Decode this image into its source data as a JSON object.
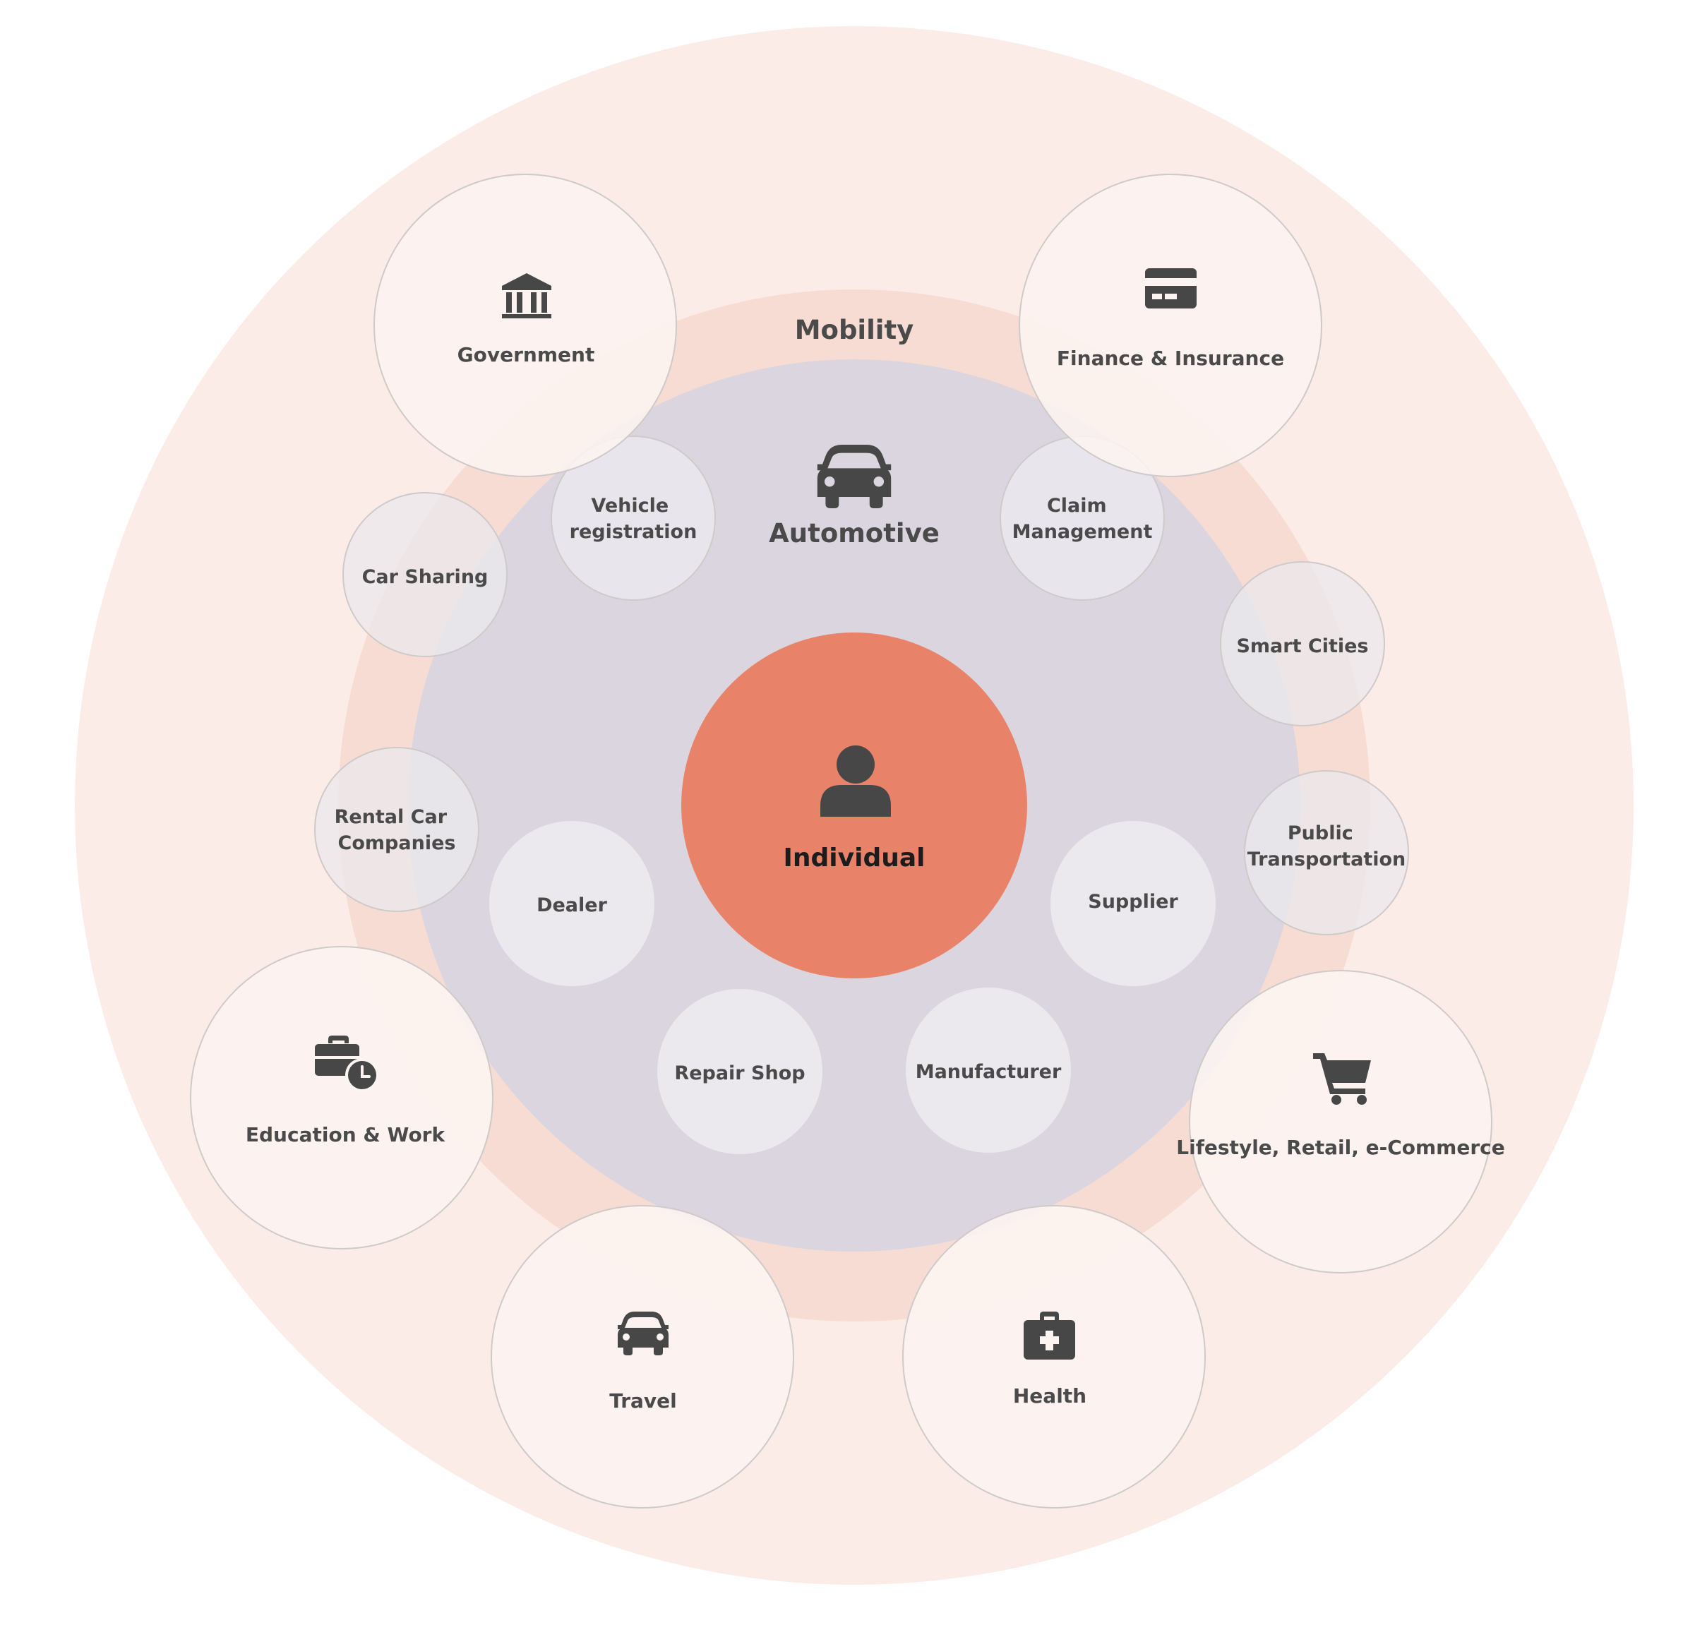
{
  "center": {
    "label": "Individual",
    "icon": "person-icon"
  },
  "automotive": {
    "label": "Automotive",
    "icon": "car-icon"
  },
  "mobility": {
    "label": "Mobility"
  },
  "inner_nodes": {
    "vehicle_registration": {
      "lines": [
        "Vehicle",
        "registration"
      ]
    },
    "claim_management": {
      "lines": [
        "Claim",
        "Management"
      ]
    },
    "dealer": {
      "lines": [
        "Dealer"
      ]
    },
    "supplier": {
      "lines": [
        "Supplier"
      ]
    },
    "repair_shop": {
      "lines": [
        "Repair Shop"
      ]
    },
    "manufacturer": {
      "lines": [
        "Manufacturer"
      ]
    }
  },
  "mobility_nodes": {
    "car_sharing": {
      "lines": [
        "Car Sharing"
      ]
    },
    "rental_car": {
      "lines": [
        "Rental Car",
        "Companies"
      ]
    },
    "smart_cities": {
      "lines": [
        "Smart Cities"
      ]
    },
    "public_transportation": {
      "lines": [
        "Public",
        "Transportation"
      ]
    }
  },
  "outer_nodes": {
    "government": {
      "label": "Government",
      "icon": "bank-icon"
    },
    "finance": {
      "label": "Finance & Insurance",
      "icon": "credit-card-icon"
    },
    "education": {
      "label": "Education & Work",
      "icon": "briefcase-clock-icon"
    },
    "lifestyle": {
      "label": "Lifestyle, Retail, e-Commerce",
      "icon": "shopping-cart-icon"
    },
    "travel": {
      "label": "Travel",
      "icon": "car-icon"
    },
    "health": {
      "label": "Health",
      "icon": "medical-kit-icon"
    }
  },
  "colors": {
    "outer_ring": "#fbece7",
    "mobility_ring": "#f7dcd3",
    "automotive_ring": "#dbd5e0",
    "center": "#e8836a",
    "node_fill": "#ebe8ee",
    "outer_node_fill": "#fcf4f1",
    "node_stroke": "#cfcaca",
    "text": "#4a4a4a"
  }
}
